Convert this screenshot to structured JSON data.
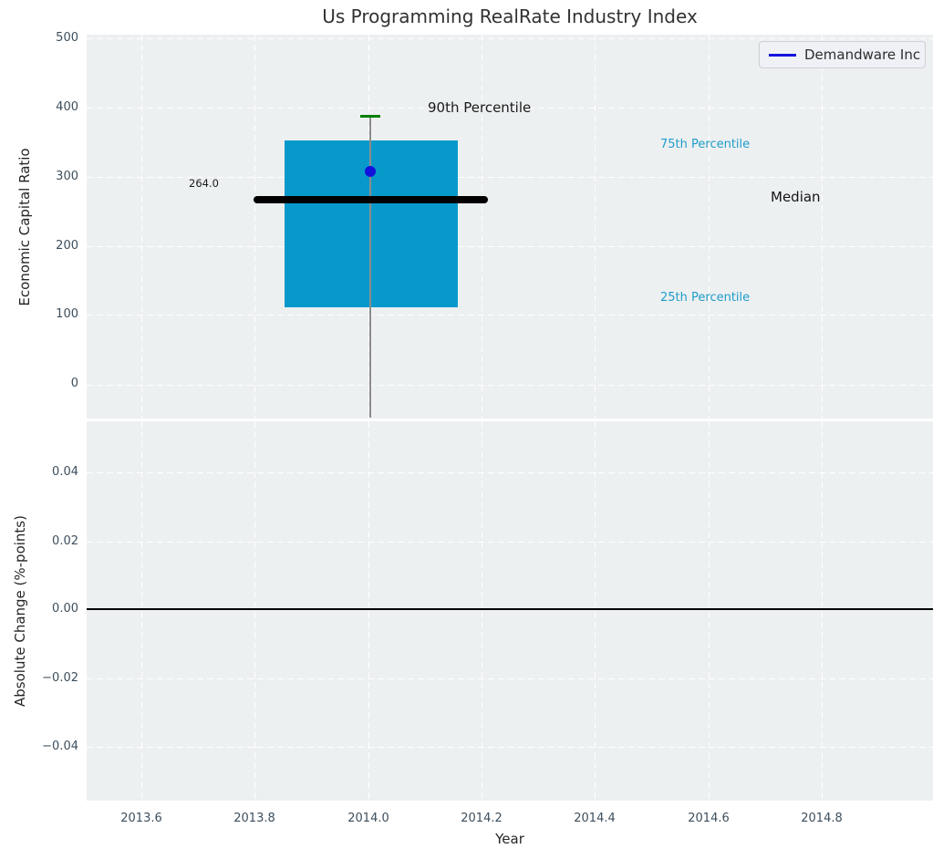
{
  "title": "Us Programming RealRate Industry Index",
  "colors": {
    "box_fill": "#0899cb",
    "median_line": "#000000",
    "whisker": "#8c8c8c",
    "p90_cap": "#008000",
    "company_marker": "#1212dd",
    "legend_line": "#1212dd",
    "percentile_label": "#1f9dc9",
    "plot_background": "#edf0f1",
    "tick_label": "#3d4e5c"
  },
  "legend": {
    "label": "Demandware Inc"
  },
  "top_plot": {
    "ylabel": "Economic Capital Ratio",
    "yticks": [
      "500",
      "400",
      "300",
      "200",
      "100",
      "0"
    ],
    "annotations": {
      "p90_label": "90th Percentile",
      "p75_label": "75th Percentile",
      "median_label": "Median",
      "p25_label": "25th Percentile",
      "median_value": "264.0"
    }
  },
  "bottom_plot": {
    "ylabel": "Absolute Change (%-points)",
    "yticks": [
      "0.04",
      "0.02",
      "0.00",
      "−0.02",
      "−0.04"
    ],
    "xlabel": "Year",
    "xticks": [
      "2013.6",
      "2013.8",
      "2014.0",
      "2014.2",
      "2014.4",
      "2014.6",
      "2014.8"
    ]
  },
  "chart_data": [
    {
      "type": "box",
      "subplot": "top",
      "title": "Us Programming RealRate Industry Index",
      "ylabel": "Economic Capital Ratio",
      "ylim": [
        -50,
        505
      ],
      "yticks": [
        0,
        100,
        200,
        300,
        400,
        500
      ],
      "grid": true,
      "x_center": 2014.0,
      "box_x_range": [
        2013.85,
        2014.15
      ],
      "median_x_range": [
        2013.8,
        2014.21
      ],
      "values": {
        "p90": 385,
        "p75": 350,
        "median": 264.0,
        "p25": 110,
        "company_marker": 307
      },
      "series": [
        {
          "name": "Demandware Inc",
          "x": 2014.0,
          "y": 307,
          "marker": "circle",
          "color": "#1212dd"
        }
      ],
      "annotations": [
        {
          "text": "264.0",
          "x": 2013.68,
          "y": 288
        },
        {
          "text": "90th Percentile",
          "x": 2014.21,
          "y": 396
        },
        {
          "text": "75th Percentile",
          "x": 2014.52,
          "y": 344
        },
        {
          "text": "Median",
          "x": 2014.71,
          "y": 266
        },
        {
          "text": "25th Percentile",
          "x": 2014.52,
          "y": 122
        }
      ],
      "legend": {
        "entries": [
          "Demandware Inc"
        ],
        "position": "upper right"
      }
    },
    {
      "type": "line",
      "subplot": "bottom",
      "xlabel": "Year",
      "ylabel": "Absolute Change (%-points)",
      "xlim": [
        2013.5,
        2015.0
      ],
      "ylim": [
        -0.055,
        0.055
      ],
      "xticks": [
        2013.6,
        2013.8,
        2014.0,
        2014.2,
        2014.4,
        2014.6,
        2014.8
      ],
      "yticks": [
        -0.04,
        -0.02,
        0.0,
        0.02,
        0.04
      ],
      "zero_line_y": 0.0,
      "series": [],
      "grid": true
    }
  ]
}
